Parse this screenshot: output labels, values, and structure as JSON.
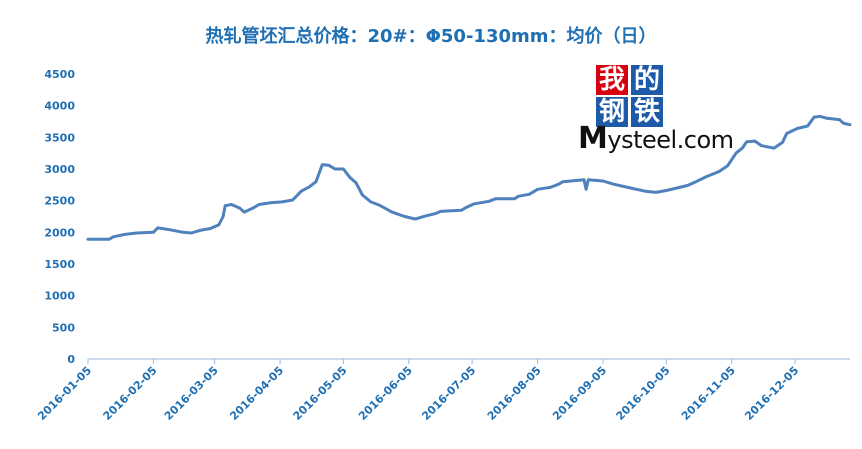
{
  "chart_data": {
    "type": "line",
    "title": "热轧管坯汇总价格：20#：Φ50-130mm：均价（日）",
    "xlabel": "",
    "ylabel": "",
    "ylim": [
      0,
      4500
    ],
    "yticks": [
      0,
      500,
      1000,
      1500,
      2000,
      2500,
      3000,
      3500,
      4000,
      4500
    ],
    "xticks": [
      "2016-01-05",
      "2016-02-05",
      "2016-03-05",
      "2016-04-05",
      "2016-05-05",
      "2016-06-05",
      "2016-07-05",
      "2016-08-05",
      "2016-09-05",
      "2016-10-05",
      "2016-11-05",
      "2016-12-05"
    ],
    "xlim": [
      "2016-01-05",
      "2016-12-31"
    ],
    "grid": false,
    "line_color": "#4f81bd",
    "series": [
      {
        "points": [
          [
            "2016-01-05",
            1890
          ],
          [
            "2016-01-15",
            1890
          ],
          [
            "2016-01-17",
            1930
          ],
          [
            "2016-01-23",
            1970
          ],
          [
            "2016-01-28",
            1990
          ],
          [
            "2016-02-05",
            2000
          ],
          [
            "2016-02-07",
            2070
          ],
          [
            "2016-02-13",
            2040
          ],
          [
            "2016-02-19",
            2000
          ],
          [
            "2016-02-23",
            1990
          ],
          [
            "2016-02-27",
            2030
          ],
          [
            "2016-03-03",
            2060
          ],
          [
            "2016-03-07",
            2120
          ],
          [
            "2016-03-09",
            2250
          ],
          [
            "2016-03-10",
            2420
          ],
          [
            "2016-03-13",
            2440
          ],
          [
            "2016-03-17",
            2380
          ],
          [
            "2016-03-19",
            2320
          ],
          [
            "2016-03-23",
            2380
          ],
          [
            "2016-03-26",
            2440
          ],
          [
            "2016-04-01",
            2470
          ],
          [
            "2016-04-06",
            2480
          ],
          [
            "2016-04-11",
            2510
          ],
          [
            "2016-04-15",
            2650
          ],
          [
            "2016-04-19",
            2720
          ],
          [
            "2016-04-22",
            2800
          ],
          [
            "2016-04-25",
            3070
          ],
          [
            "2016-04-28",
            3060
          ],
          [
            "2016-05-01",
            3000
          ],
          [
            "2016-05-05",
            3000
          ],
          [
            "2016-05-08",
            2870
          ],
          [
            "2016-05-11",
            2780
          ],
          [
            "2016-05-14",
            2590
          ],
          [
            "2016-05-18",
            2480
          ],
          [
            "2016-05-22",
            2430
          ],
          [
            "2016-05-28",
            2320
          ],
          [
            "2016-06-03",
            2250
          ],
          [
            "2016-06-08",
            2210
          ],
          [
            "2016-06-13",
            2260
          ],
          [
            "2016-06-18",
            2300
          ],
          [
            "2016-06-20",
            2330
          ],
          [
            "2016-06-30",
            2350
          ],
          [
            "2016-07-02",
            2390
          ],
          [
            "2016-07-06",
            2450
          ],
          [
            "2016-07-13",
            2490
          ],
          [
            "2016-07-16",
            2530
          ],
          [
            "2016-07-25",
            2530
          ],
          [
            "2016-07-27",
            2570
          ],
          [
            "2016-08-01",
            2600
          ],
          [
            "2016-08-05",
            2680
          ],
          [
            "2016-08-11",
            2710
          ],
          [
            "2016-08-15",
            2760
          ],
          [
            "2016-08-17",
            2800
          ],
          [
            "2016-08-27",
            2830
          ],
          [
            "2016-08-28",
            2680
          ],
          [
            "2016-08-29",
            2830
          ],
          [
            "2016-09-05",
            2810
          ],
          [
            "2016-09-10",
            2760
          ],
          [
            "2016-09-18",
            2700
          ],
          [
            "2016-09-25",
            2650
          ],
          [
            "2016-09-30",
            2630
          ],
          [
            "2016-10-05",
            2660
          ],
          [
            "2016-10-10",
            2700
          ],
          [
            "2016-10-15",
            2740
          ],
          [
            "2016-10-19",
            2800
          ],
          [
            "2016-10-24",
            2880
          ],
          [
            "2016-10-30",
            2960
          ],
          [
            "2016-11-03",
            3050
          ],
          [
            "2016-11-07",
            3250
          ],
          [
            "2016-11-10",
            3330
          ],
          [
            "2016-11-12",
            3430
          ],
          [
            "2016-11-16",
            3440
          ],
          [
            "2016-11-19",
            3370
          ],
          [
            "2016-11-25",
            3330
          ],
          [
            "2016-11-29",
            3420
          ],
          [
            "2016-12-01",
            3560
          ],
          [
            "2016-12-06",
            3640
          ],
          [
            "2016-12-11",
            3680
          ],
          [
            "2016-12-14",
            3820
          ],
          [
            "2016-12-17",
            3830
          ],
          [
            "2016-12-20",
            3800
          ],
          [
            "2016-12-26",
            3780
          ],
          [
            "2016-12-28",
            3720
          ],
          [
            "2016-12-31",
            3700
          ]
        ]
      }
    ]
  },
  "logo": {
    "chars": [
      "我",
      "的",
      "钢",
      "铁"
    ],
    "wordmark_big": "M",
    "wordmark_rest": "ysteel.com",
    "colors": [
      "#d7000f",
      "#1d5aa8",
      "#1d5aa8",
      "#1d5aa8"
    ]
  }
}
